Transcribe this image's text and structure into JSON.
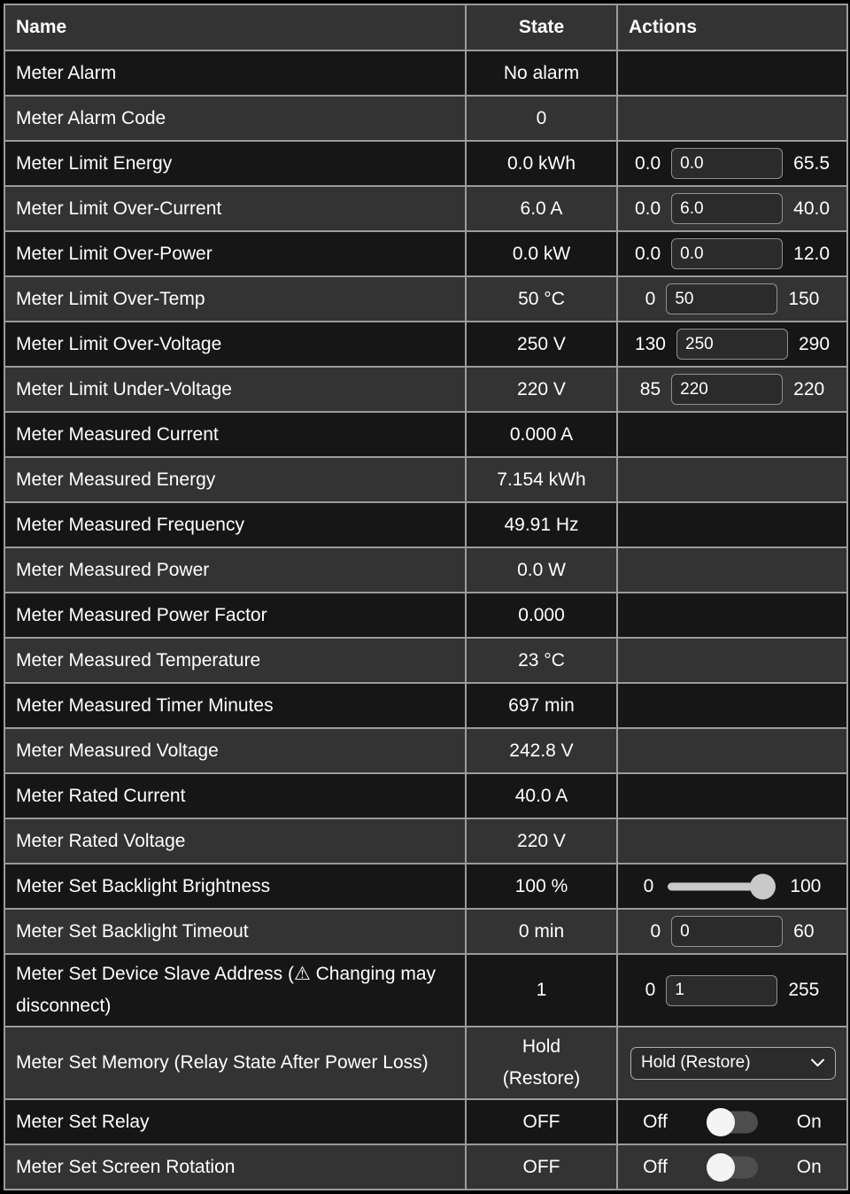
{
  "colors": {
    "background": "#000000",
    "row_dark": "#161616",
    "row_light": "#333333",
    "border": "#9b9b9b",
    "text": "#ffffff",
    "input_background": "#2b2b2b",
    "slider": "#c9c9c9",
    "toggle_track": "#4d4d4d",
    "toggle_thumb": "#f4f4f4"
  },
  "table": {
    "headers": {
      "name": "Name",
      "state": "State",
      "actions": "Actions"
    },
    "rows": [
      {
        "name": "Meter Alarm",
        "state": "No alarm",
        "action": {
          "type": "none"
        }
      },
      {
        "name": "Meter Alarm Code",
        "state": "0",
        "action": {
          "type": "none"
        }
      },
      {
        "name": "Meter Limit Energy",
        "state": "0.0 kWh",
        "action": {
          "type": "number",
          "min": "0.0",
          "value": "0.0",
          "max": "65.5"
        }
      },
      {
        "name": "Meter Limit Over-Current",
        "state": "6.0 A",
        "action": {
          "type": "number",
          "min": "0.0",
          "value": "6.0",
          "max": "40.0"
        }
      },
      {
        "name": "Meter Limit Over-Power",
        "state": "0.0 kW",
        "action": {
          "type": "number",
          "min": "0.0",
          "value": "0.0",
          "max": "12.0"
        }
      },
      {
        "name": "Meter Limit Over-Temp",
        "state": "50 °C",
        "action": {
          "type": "number",
          "min": "0",
          "value": "50",
          "max": "150"
        }
      },
      {
        "name": "Meter Limit Over-Voltage",
        "state": "250 V",
        "action": {
          "type": "number",
          "min": "130",
          "value": "250",
          "max": "290"
        }
      },
      {
        "name": "Meter Limit Under-Voltage",
        "state": "220 V",
        "action": {
          "type": "number",
          "min": "85",
          "value": "220",
          "max": "220"
        }
      },
      {
        "name": "Meter Measured Current",
        "state": "0.000 A",
        "action": {
          "type": "none"
        }
      },
      {
        "name": "Meter Measured Energy",
        "state": "7.154 kWh",
        "action": {
          "type": "none"
        }
      },
      {
        "name": "Meter Measured Frequency",
        "state": "49.91 Hz",
        "action": {
          "type": "none"
        }
      },
      {
        "name": "Meter Measured Power",
        "state": "0.0 W",
        "action": {
          "type": "none"
        }
      },
      {
        "name": "Meter Measured Power Factor",
        "state": "0.000",
        "action": {
          "type": "none"
        }
      },
      {
        "name": "Meter Measured Temperature",
        "state": "23 °C",
        "action": {
          "type": "none"
        }
      },
      {
        "name": "Meter Measured Timer Minutes",
        "state": "697 min",
        "action": {
          "type": "none"
        }
      },
      {
        "name": "Meter Measured Voltage",
        "state": "242.8 V",
        "action": {
          "type": "none"
        }
      },
      {
        "name": "Meter Rated Current",
        "state": "40.0 A",
        "action": {
          "type": "none"
        }
      },
      {
        "name": "Meter Rated Voltage",
        "state": "220 V",
        "action": {
          "type": "none"
        }
      },
      {
        "name": "Meter Set Backlight Brightness",
        "state": "100 %",
        "action": {
          "type": "slider",
          "min": "0",
          "max": "100",
          "value": 100
        }
      },
      {
        "name": "Meter Set Backlight Timeout",
        "state": "0 min",
        "action": {
          "type": "number",
          "min": "0",
          "value": "0",
          "max": "60"
        }
      },
      {
        "name": "Meter Set Device Slave Address (⚠ Changing may disconnect)",
        "state": "1",
        "action": {
          "type": "number",
          "min": "0",
          "value": "1",
          "max": "255"
        }
      },
      {
        "name": "Meter Set Memory (Relay State After Power Loss)",
        "state": "Hold (Restore)",
        "action": {
          "type": "select",
          "selected": "Hold (Restore)"
        }
      },
      {
        "name": "Meter Set Relay",
        "state": "OFF",
        "action": {
          "type": "toggle",
          "off_label": "Off",
          "on_label": "On",
          "value": "off"
        }
      },
      {
        "name": "Meter Set Screen Rotation",
        "state": "OFF",
        "action": {
          "type": "toggle",
          "off_label": "Off",
          "on_label": "On",
          "value": "off"
        }
      }
    ]
  }
}
